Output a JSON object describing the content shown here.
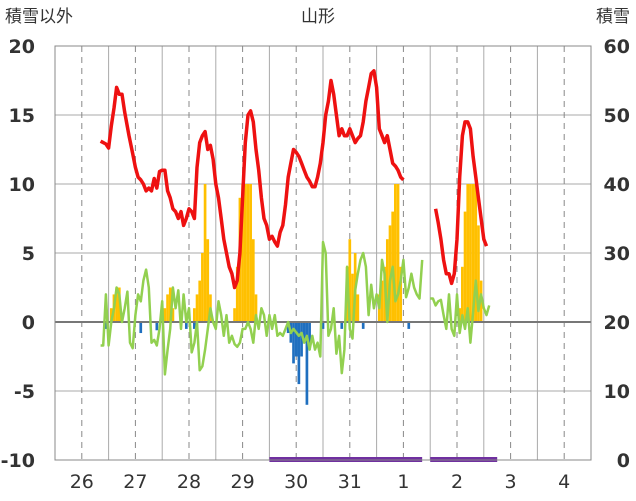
{
  "chart_data": {
    "type": "bar+line",
    "title": "山形",
    "left_axis_label": "積雪以外",
    "right_axis_label": "積雪",
    "left_ylim": [
      -10,
      20
    ],
    "left_ticks": [
      "20",
      "15",
      "10",
      "5",
      "0",
      "-5",
      "-10"
    ],
    "right_ylim": [
      0,
      60
    ],
    "right_ticks": [
      "60",
      "50",
      "40",
      "30",
      "20",
      "10",
      "0"
    ],
    "x_categories": [
      "26",
      "27",
      "28",
      "29",
      "30",
      "31",
      "1",
      "2",
      "3",
      "4"
    ],
    "grid": true,
    "colors": {
      "temperature": "#ee1111",
      "snow_depth": "#ffc000",
      "precipitation": "#1f6fbf",
      "sunshine_line": "#92d050",
      "bottom_bar": "#7030a0",
      "zero_line": "#777777"
    },
    "temperature_series": [
      [
        [
          0.85,
          13.1
        ],
        [
          0.9,
          13
        ],
        [
          0.95,
          12.9
        ],
        [
          1.0,
          12.6
        ],
        [
          1.05,
          14.2
        ],
        [
          1.1,
          15.5
        ],
        [
          1.15,
          17
        ],
        [
          1.2,
          16.5
        ],
        [
          1.25,
          16.5
        ],
        [
          1.3,
          15.2
        ],
        [
          1.38,
          13.5
        ],
        [
          1.45,
          12.2
        ],
        [
          1.5,
          11.2
        ],
        [
          1.55,
          10.5
        ],
        [
          1.6,
          10.3
        ],
        [
          1.65,
          10
        ],
        [
          1.7,
          9.5
        ],
        [
          1.75,
          9.7
        ],
        [
          1.8,
          9.5
        ],
        [
          1.85,
          10.4
        ],
        [
          1.9,
          9.7
        ],
        [
          1.95,
          10.9
        ],
        [
          2.0,
          11
        ],
        [
          2.05,
          11
        ],
        [
          2.1,
          9.5
        ],
        [
          2.15,
          9
        ],
        [
          2.2,
          8.2
        ],
        [
          2.25,
          8
        ],
        [
          2.3,
          7.5
        ],
        [
          2.35,
          8
        ],
        [
          2.4,
          7
        ],
        [
          2.45,
          7.5
        ],
        [
          2.5,
          8.2
        ],
        [
          2.55,
          8
        ],
        [
          2.6,
          7.5
        ],
        [
          2.65,
          11.2
        ],
        [
          2.7,
          13
        ],
        [
          2.75,
          13.5
        ],
        [
          2.8,
          13.8
        ],
        [
          2.85,
          12.5
        ],
        [
          2.9,
          12.8
        ],
        [
          2.95,
          11.8
        ],
        [
          3.0,
          10
        ],
        [
          3.05,
          9
        ],
        [
          3.1,
          7.5
        ],
        [
          3.15,
          6
        ],
        [
          3.2,
          5
        ],
        [
          3.25,
          4
        ],
        [
          3.3,
          3.5
        ],
        [
          3.35,
          2.5
        ],
        [
          3.4,
          3
        ],
        [
          3.45,
          5
        ],
        [
          3.5,
          9
        ],
        [
          3.55,
          13
        ],
        [
          3.6,
          15
        ],
        [
          3.65,
          15.3
        ],
        [
          3.7,
          14.5
        ],
        [
          3.75,
          12.5
        ],
        [
          3.8,
          11
        ],
        [
          3.85,
          9
        ],
        [
          3.9,
          7.5
        ],
        [
          3.95,
          7
        ],
        [
          4.0,
          6
        ],
        [
          4.05,
          6.2
        ],
        [
          4.1,
          5.8
        ],
        [
          4.15,
          5.5
        ],
        [
          4.2,
          6.5
        ],
        [
          4.25,
          7
        ],
        [
          4.3,
          8.5
        ],
        [
          4.35,
          10.5
        ],
        [
          4.4,
          11.5
        ],
        [
          4.45,
          12.5
        ],
        [
          4.5,
          12.3
        ],
        [
          4.55,
          12
        ],
        [
          4.6,
          11.5
        ],
        [
          4.65,
          11
        ],
        [
          4.7,
          10.5
        ],
        [
          4.75,
          10.2
        ],
        [
          4.8,
          9.8
        ],
        [
          4.85,
          9.8
        ],
        [
          4.9,
          10.5
        ],
        [
          4.95,
          11.5
        ],
        [
          5.0,
          13
        ],
        [
          5.05,
          15
        ],
        [
          5.1,
          16
        ],
        [
          5.15,
          17.5
        ],
        [
          5.2,
          16.5
        ],
        [
          5.25,
          15
        ],
        [
          5.3,
          13.5
        ],
        [
          5.35,
          14
        ],
        [
          5.4,
          13.5
        ],
        [
          5.45,
          13.5
        ],
        [
          5.5,
          14
        ],
        [
          5.55,
          13.5
        ],
        [
          5.6,
          13
        ],
        [
          5.65,
          13.3
        ],
        [
          5.7,
          13.5
        ],
        [
          5.75,
          14.5
        ],
        [
          5.8,
          16
        ],
        [
          5.85,
          17
        ],
        [
          5.9,
          18
        ],
        [
          5.95,
          18.2
        ],
        [
          6.0,
          17
        ],
        [
          6.05,
          14
        ],
        [
          6.1,
          13.5
        ],
        [
          6.15,
          13
        ],
        [
          6.2,
          13.5
        ],
        [
          6.25,
          12.5
        ],
        [
          6.3,
          11.5
        ],
        [
          6.35,
          11.3
        ],
        [
          6.4,
          11
        ],
        [
          6.45,
          10.5
        ],
        [
          6.5,
          10.3
        ]
      ],
      [
        [
          7.1,
          8.2
        ],
        [
          7.15,
          7.2
        ],
        [
          7.2,
          6
        ],
        [
          7.25,
          4.5
        ],
        [
          7.3,
          3.5
        ],
        [
          7.35,
          3.5
        ],
        [
          7.4,
          2.8
        ],
        [
          7.45,
          3.5
        ],
        [
          7.5,
          6
        ],
        [
          7.55,
          10.5
        ],
        [
          7.6,
          13.5
        ],
        [
          7.65,
          14.5
        ],
        [
          7.7,
          14.5
        ],
        [
          7.75,
          14
        ],
        [
          7.8,
          12
        ],
        [
          7.85,
          10.5
        ],
        [
          7.9,
          9
        ],
        [
          7.95,
          7.5
        ],
        [
          8.0,
          6
        ],
        [
          8.05,
          5.5
        ]
      ]
    ],
    "sunshine_series": [
      [
        [
          0.85,
          -1.7
        ],
        [
          0.9,
          -1.7
        ],
        [
          0.95,
          2
        ],
        [
          1.0,
          -1.7
        ],
        [
          1.05,
          0
        ],
        [
          1.1,
          1
        ],
        [
          1.15,
          2.5
        ],
        [
          1.2,
          2
        ],
        [
          1.25,
          0
        ],
        [
          1.3,
          1
        ],
        [
          1.35,
          2.2
        ],
        [
          1.4,
          -1.5
        ],
        [
          1.45,
          -1.9
        ],
        [
          1.5,
          0.5
        ],
        [
          1.55,
          2
        ],
        [
          1.6,
          1.5
        ],
        [
          1.65,
          3
        ],
        [
          1.7,
          3.8
        ],
        [
          1.75,
          2.5
        ],
        [
          1.8,
          -1.5
        ],
        [
          1.85,
          -1.3
        ],
        [
          1.9,
          -1.7
        ],
        [
          1.95,
          -0.5
        ],
        [
          2.0,
          1.5
        ],
        [
          2.05,
          -3.8
        ],
        [
          2.1,
          -2
        ],
        [
          2.15,
          -0.5
        ],
        [
          2.2,
          2.5
        ],
        [
          2.25,
          1
        ],
        [
          2.3,
          2.3
        ],
        [
          2.35,
          -0.5
        ],
        [
          2.4,
          2
        ],
        [
          2.45,
          0
        ],
        [
          2.5,
          1
        ],
        [
          2.55,
          -2.2
        ],
        [
          2.6,
          -1.5
        ],
        [
          2.65,
          0
        ],
        [
          2.7,
          -3.5
        ],
        [
          2.75,
          -3.2
        ],
        [
          2.8,
          -2
        ],
        [
          2.85,
          -0.5
        ],
        [
          2.9,
          1
        ],
        [
          2.95,
          0
        ],
        [
          3.0,
          -0.5
        ],
        [
          3.05,
          1.5
        ],
        [
          3.1,
          0.5
        ],
        [
          3.15,
          -1
        ],
        [
          3.2,
          0.5
        ],
        [
          3.25,
          -1.5
        ],
        [
          3.3,
          -1
        ],
        [
          3.35,
          -1.6
        ],
        [
          3.4,
          -1.8
        ],
        [
          3.45,
          -1.5
        ],
        [
          3.5,
          -0.5
        ],
        [
          3.55,
          -0.5
        ],
        [
          3.6,
          0
        ],
        [
          3.65,
          -0.5
        ],
        [
          3.7,
          -1.5
        ],
        [
          3.75,
          0.5
        ],
        [
          3.8,
          -0.5
        ],
        [
          3.85,
          1
        ],
        [
          3.9,
          0.5
        ],
        [
          3.95,
          -1
        ],
        [
          4.0,
          0.5
        ],
        [
          4.05,
          -0.5
        ],
        [
          4.1,
          0.5
        ],
        [
          4.15,
          -1
        ],
        [
          4.2,
          -0.8
        ],
        [
          4.25,
          -1
        ],
        [
          4.3,
          -0.5
        ],
        [
          4.35,
          0
        ],
        [
          4.4,
          -0.8
        ],
        [
          4.45,
          -0.5
        ],
        [
          4.55,
          -1
        ],
        [
          4.6,
          -0.8
        ],
        [
          4.65,
          -1.5
        ],
        [
          4.7,
          -1
        ],
        [
          4.75,
          -2
        ],
        [
          4.8,
          -1
        ],
        [
          4.85,
          -2
        ],
        [
          4.9,
          -1.5
        ],
        [
          4.95,
          -2.5
        ],
        [
          5.0,
          5.8
        ],
        [
          5.05,
          5
        ],
        [
          5.1,
          -1
        ],
        [
          5.15,
          -0.5
        ],
        [
          5.2,
          1
        ],
        [
          5.25,
          -2.3
        ],
        [
          5.3,
          -1
        ],
        [
          5.35,
          -3.7
        ],
        [
          5.4,
          -2
        ],
        [
          5.45,
          4
        ],
        [
          5.5,
          -0.5
        ],
        [
          5.55,
          -1.2
        ],
        [
          5.6,
          2.3
        ],
        [
          5.65,
          3.5
        ],
        [
          5.7,
          4.5
        ],
        [
          5.75,
          5
        ],
        [
          5.8,
          4
        ],
        [
          5.85,
          0.5
        ],
        [
          5.9,
          2.7
        ],
        [
          5.95,
          1
        ],
        [
          6.0,
          2
        ],
        [
          6.05,
          1
        ],
        [
          6.1,
          4.5
        ],
        [
          6.15,
          3.5
        ],
        [
          6.2,
          0
        ],
        [
          6.25,
          3
        ],
        [
          6.3,
          4
        ],
        [
          6.35,
          1.5
        ],
        [
          6.4,
          2
        ],
        [
          6.45,
          3
        ],
        [
          6.5,
          4.5
        ],
        [
          6.55,
          1.8
        ],
        [
          6.6,
          2.5
        ],
        [
          6.65,
          3.5
        ],
        [
          6.7,
          2.5
        ],
        [
          6.75,
          2
        ],
        [
          6.8,
          1.7
        ],
        [
          6.85,
          4.5
        ]
      ],
      [
        [
          7.0,
          1.7
        ],
        [
          7.05,
          1.7
        ],
        [
          7.1,
          1.2
        ],
        [
          7.15,
          1.5
        ],
        [
          7.2,
          1.6
        ],
        [
          7.25,
          0.5
        ],
        [
          7.3,
          -0.5
        ],
        [
          7.35,
          2
        ],
        [
          7.4,
          -0.5
        ],
        [
          7.45,
          -1
        ],
        [
          7.5,
          2
        ],
        [
          7.55,
          -0.8
        ],
        [
          7.6,
          0.5
        ],
        [
          7.65,
          -0.5
        ],
        [
          7.7,
          1
        ],
        [
          7.75,
          -1.5
        ],
        [
          7.8,
          0.7
        ],
        [
          7.85,
          3
        ],
        [
          7.9,
          0.8
        ],
        [
          7.95,
          2
        ],
        [
          8.0,
          1
        ],
        [
          8.05,
          0.5
        ],
        [
          8.1,
          1.2
        ]
      ]
    ],
    "snow_depth_bars": [
      [
        1.05,
        22
      ],
      [
        1.1,
        24
      ],
      [
        1.15,
        25
      ],
      [
        1.2,
        25
      ],
      [
        1.25,
        21
      ],
      [
        2.05,
        22
      ],
      [
        2.1,
        24
      ],
      [
        2.15,
        25
      ],
      [
        2.2,
        22
      ],
      [
        2.6,
        22
      ],
      [
        2.65,
        24
      ],
      [
        2.7,
        26
      ],
      [
        2.75,
        30
      ],
      [
        2.8,
        40
      ],
      [
        2.85,
        32
      ],
      [
        2.9,
        24
      ],
      [
        3.35,
        22
      ],
      [
        3.4,
        28
      ],
      [
        3.45,
        38
      ],
      [
        3.5,
        40
      ],
      [
        3.55,
        40
      ],
      [
        3.6,
        40
      ],
      [
        3.65,
        40
      ],
      [
        3.7,
        32
      ],
      [
        3.75,
        24
      ],
      [
        5.45,
        28
      ],
      [
        5.5,
        32
      ],
      [
        5.55,
        27
      ],
      [
        5.6,
        30
      ],
      [
        5.65,
        24
      ],
      [
        6.05,
        24
      ],
      [
        6.1,
        26
      ],
      [
        6.15,
        28
      ],
      [
        6.2,
        32
      ],
      [
        6.25,
        34
      ],
      [
        6.3,
        36
      ],
      [
        6.35,
        40
      ],
      [
        6.4,
        40
      ],
      [
        6.45,
        28
      ],
      [
        7.55,
        22
      ],
      [
        7.6,
        28
      ],
      [
        7.65,
        36
      ],
      [
        7.7,
        40
      ],
      [
        7.75,
        40
      ],
      [
        7.8,
        40
      ],
      [
        7.85,
        40
      ],
      [
        7.9,
        34
      ],
      [
        7.95,
        26
      ]
    ],
    "precipitation_bars": [
      [
        0.95,
        -0.5
      ],
      [
        1.6,
        -0.8
      ],
      [
        1.9,
        -0.6
      ],
      [
        2.45,
        -0.5
      ],
      [
        2.6,
        -0.5
      ],
      [
        4.35,
        -0.8
      ],
      [
        4.4,
        -1.5
      ],
      [
        4.45,
        -3
      ],
      [
        4.5,
        -2.5
      ],
      [
        4.55,
        -4.5
      ],
      [
        4.6,
        -2.5
      ],
      [
        4.65,
        -1.5
      ],
      [
        4.7,
        -6
      ],
      [
        4.75,
        -2
      ],
      [
        5.0,
        -0.5
      ],
      [
        5.35,
        -0.5
      ],
      [
        5.75,
        -0.5
      ],
      [
        6.6,
        -0.5
      ]
    ],
    "bottom_bars": [
      [
        4.0,
        6.85
      ],
      [
        7.0,
        8.25
      ]
    ]
  }
}
